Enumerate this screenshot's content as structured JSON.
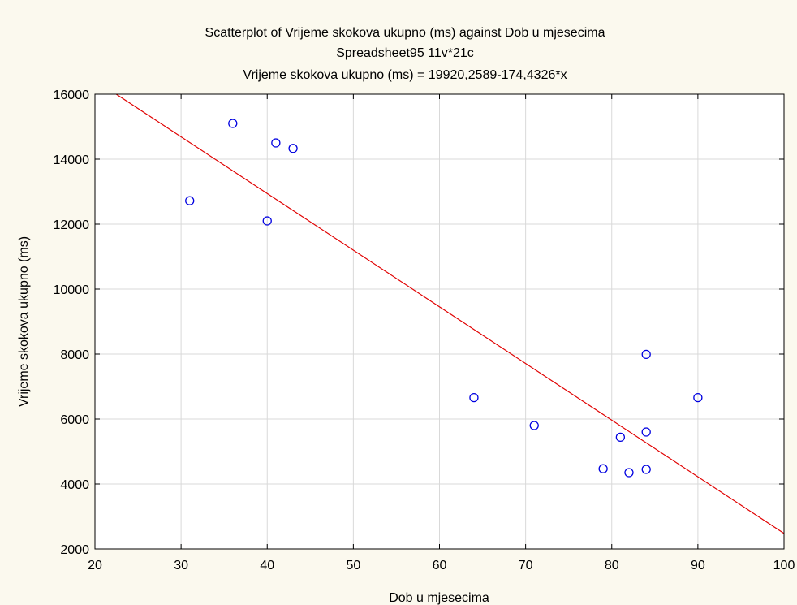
{
  "chart_data": {
    "type": "scatter",
    "title": "Scatterplot of Vrijeme skokova ukupno (ms) against Dob u mjesecima",
    "subtitle": "Spreadsheet95 11v*21c",
    "equation": "Vrijeme skokova ukupno (ms) = 19920,2589-174,4326*x",
    "xlabel": "Dob u mjesecima",
    "ylabel": "Vrijeme skokova ukupno (ms)",
    "xlim": [
      20,
      100
    ],
    "ylim": [
      2000,
      16000
    ],
    "x_ticks": [
      "20",
      "30",
      "40",
      "50",
      "60",
      "70",
      "80",
      "90",
      "100"
    ],
    "y_ticks": [
      "2000",
      "4000",
      "6000",
      "8000",
      "10000",
      "12000",
      "14000",
      "16000"
    ],
    "grid": true,
    "points": [
      {
        "x": 31,
        "y": 12720
      },
      {
        "x": 36,
        "y": 15100
      },
      {
        "x": 40,
        "y": 12100
      },
      {
        "x": 41,
        "y": 14500
      },
      {
        "x": 43,
        "y": 14330
      },
      {
        "x": 64,
        "y": 6660
      },
      {
        "x": 71,
        "y": 5800
      },
      {
        "x": 79,
        "y": 4470
      },
      {
        "x": 81,
        "y": 5440
      },
      {
        "x": 82,
        "y": 4350
      },
      {
        "x": 84,
        "y": 7990
      },
      {
        "x": 84,
        "y": 5600
      },
      {
        "x": 84,
        "y": 4450
      },
      {
        "x": 90,
        "y": 6660
      }
    ],
    "fit_line": {
      "intercept": 19920.2589,
      "slope": -174.4326
    },
    "colors": {
      "points": "#0000e0",
      "fit_line": "#e00000",
      "plot_background": "#ffffff",
      "page_background": "#fbf9ee",
      "grid": "#d9d9d9"
    }
  }
}
